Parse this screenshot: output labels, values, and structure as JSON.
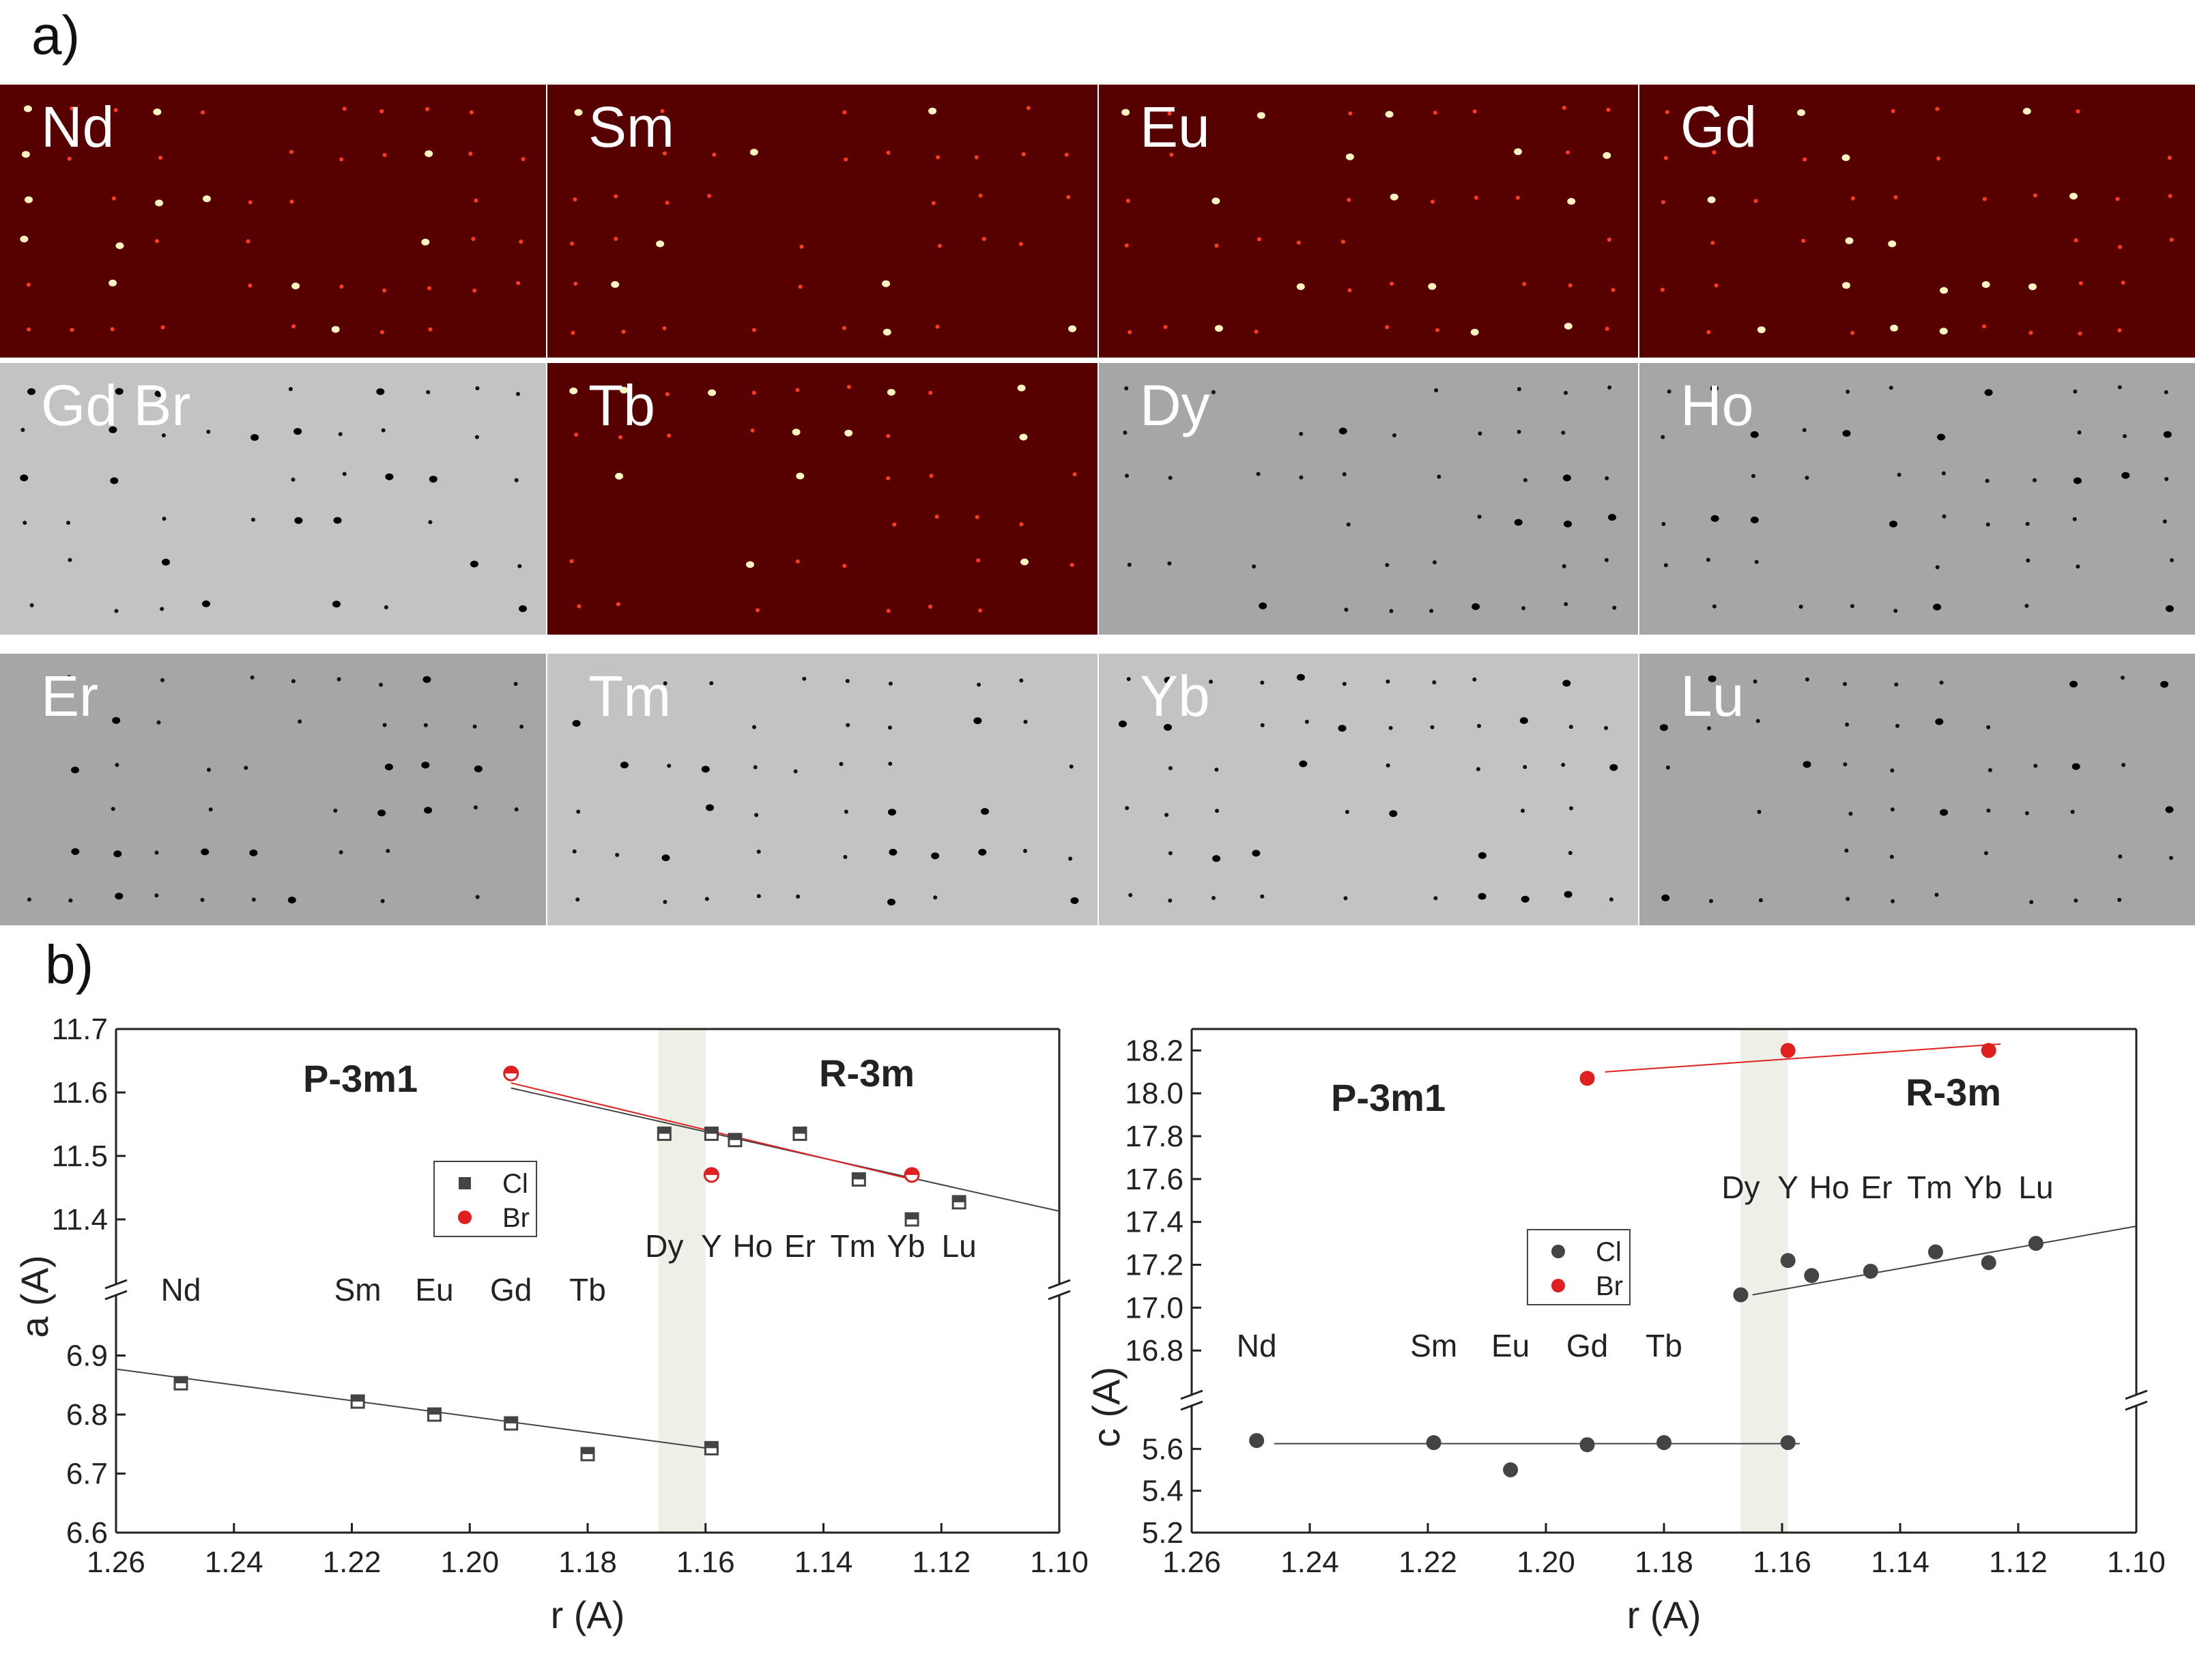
{
  "figure": {
    "panel_a_label": "a)",
    "panel_b_label": "b)"
  },
  "tiles": [
    {
      "label": "Nd",
      "theme": "red"
    },
    {
      "label": "Sm",
      "theme": "red"
    },
    {
      "label": "Eu",
      "theme": "red"
    },
    {
      "label": "Gd",
      "theme": "red"
    },
    {
      "label": "Gd Br",
      "theme": "gray-light"
    },
    {
      "label": "Tb",
      "theme": "red"
    },
    {
      "label": "Dy",
      "theme": "gray"
    },
    {
      "label": "Ho",
      "theme": "gray"
    },
    {
      "label": "Er",
      "theme": "gray"
    },
    {
      "label": "Tm",
      "theme": "gray-light"
    },
    {
      "label": "Yb",
      "theme": "gray-light"
    },
    {
      "label": "Lu",
      "theme": "gray"
    }
  ],
  "colors": {
    "red_bg": "#560000",
    "gray_bg": "#a6a6a6",
    "gray_light_bg": "#c3c3c3",
    "cl_series": "#444444",
    "br_series": "#e02020",
    "band": "#eef0e8"
  },
  "chart_data": [
    {
      "type": "scatter",
      "name": "a-parameter",
      "xlabel": "r (A)",
      "ylabel": "a (A)",
      "xlim": [
        1.26,
        1.1
      ],
      "x_ticks": [
        "1.26",
        "1.24",
        "1.22",
        "1.20",
        "1.18",
        "1.16",
        "1.14",
        "1.12",
        "1.10"
      ],
      "x_tick_values": [
        1.26,
        1.24,
        1.22,
        1.2,
        1.18,
        1.16,
        1.14,
        1.12,
        1.1
      ],
      "ylim_upper": [
        11.3,
        11.7
      ],
      "y_ticks_upper": [
        "11.7",
        "11.6",
        "11.5",
        "11.4"
      ],
      "y_tick_values_upper": [
        11.7,
        11.6,
        11.5,
        11.4
      ],
      "ylim_lower": [
        6.6,
        7.0
      ],
      "y_ticks_lower": [
        "6.9",
        "6.8",
        "6.7",
        "6.6"
      ],
      "y_tick_values_lower": [
        6.9,
        6.8,
        6.7,
        6.6
      ],
      "phase_left": "P-3m1",
      "phase_right": "R-3m",
      "band": [
        1.168,
        1.16
      ],
      "legend": [
        "Cl",
        "Br"
      ],
      "element_labels_upper": [
        "Dy",
        "Y",
        "Ho",
        "Er",
        "Tm",
        "Yb",
        "Lu"
      ],
      "element_labels_upper_x": [
        1.167,
        1.159,
        1.152,
        1.144,
        1.135,
        1.126,
        1.117
      ],
      "element_labels_lower": [
        "Nd",
        "Sm",
        "Eu",
        "Gd",
        "Tb"
      ],
      "element_labels_lower_x": [
        1.249,
        1.219,
        1.206,
        1.193,
        1.18
      ],
      "series": [
        {
          "name": "Cl",
          "panel": "upper",
          "x": [
            1.167,
            1.159,
            1.155,
            1.144,
            1.134,
            1.125,
            1.117
          ],
          "y": [
            11.535,
            11.535,
            11.525,
            11.535,
            11.463,
            11.4,
            11.427
          ]
        },
        {
          "name": "Br",
          "panel": "upper",
          "x": [
            1.193,
            1.159,
            1.125
          ],
          "y": [
            11.63,
            11.47,
            11.47
          ]
        },
        {
          "name": "Cl",
          "panel": "lower",
          "x": [
            1.249,
            1.219,
            1.206,
            1.193,
            1.18,
            1.159
          ],
          "y": [
            6.853,
            6.822,
            6.8,
            6.785,
            6.733,
            6.743
          ]
        }
      ],
      "fits": [
        {
          "series": "Cl",
          "panel": "upper",
          "x": [
            1.193,
            1.1
          ],
          "y": [
            11.607,
            11.413
          ]
        },
        {
          "series": "Br",
          "panel": "upper",
          "x": [
            1.193,
            1.125
          ],
          "y": [
            11.615,
            11.463
          ]
        },
        {
          "series": "Cl",
          "panel": "lower",
          "x": [
            1.26,
            1.159
          ],
          "y": [
            6.877,
            6.742
          ]
        }
      ]
    },
    {
      "type": "scatter",
      "name": "c-parameter",
      "xlabel": "r (A)",
      "ylabel": "c (A)",
      "xlim": [
        1.26,
        1.1
      ],
      "x_ticks": [
        "1.26",
        "1.24",
        "1.22",
        "1.20",
        "1.18",
        "1.16",
        "1.14",
        "1.12",
        "1.10"
      ],
      "x_tick_values": [
        1.26,
        1.24,
        1.22,
        1.2,
        1.18,
        1.16,
        1.14,
        1.12,
        1.1
      ],
      "ylim_upper": [
        16.6,
        18.3
      ],
      "y_ticks_upper": [
        "18.2",
        "18.0",
        "17.8",
        "17.6",
        "17.4",
        "17.2",
        "17.0",
        "16.8"
      ],
      "y_tick_values_upper": [
        18.2,
        18.0,
        17.8,
        17.6,
        17.4,
        17.2,
        17.0,
        16.8
      ],
      "ylim_lower": [
        5.2,
        5.8
      ],
      "y_ticks_lower": [
        "5.6",
        "5.4",
        "5.2"
      ],
      "y_tick_values_lower": [
        5.6,
        5.4,
        5.2
      ],
      "phase_left": "P-3m1",
      "phase_right": "R-3m",
      "band": [
        1.167,
        1.159
      ],
      "legend": [
        "Cl",
        "Br"
      ],
      "element_labels_upper": [
        "Dy",
        "Y",
        "Ho",
        "Er",
        "Tm",
        "Yb",
        "Lu"
      ],
      "element_labels_upper_x": [
        1.167,
        1.159,
        1.152,
        1.144,
        1.135,
        1.126,
        1.117
      ],
      "element_labels_lower": [
        "Nd",
        "Sm",
        "Eu",
        "Gd",
        "Tb"
      ],
      "element_labels_lower_x": [
        1.249,
        1.219,
        1.206,
        1.193,
        1.18
      ],
      "series": [
        {
          "name": "Cl",
          "panel": "upper",
          "x": [
            1.167,
            1.159,
            1.155,
            1.145,
            1.134,
            1.125,
            1.117
          ],
          "y": [
            17.06,
            17.22,
            17.15,
            17.17,
            17.26,
            17.21,
            17.3
          ]
        },
        {
          "name": "Br",
          "panel": "upper",
          "x": [
            1.193,
            1.159,
            1.125
          ],
          "y": [
            18.07,
            18.2,
            18.2
          ]
        },
        {
          "name": "Cl",
          "panel": "lower",
          "x": [
            1.249,
            1.219,
            1.206,
            1.193,
            1.18,
            1.159
          ],
          "y": [
            5.64,
            5.63,
            5.5,
            5.62,
            5.63,
            5.63
          ]
        }
      ],
      "fits": [
        {
          "series": "Cl",
          "panel": "upper",
          "x": [
            1.165,
            1.1
          ],
          "y": [
            17.06,
            17.38
          ]
        },
        {
          "series": "Br",
          "panel": "upper",
          "x": [
            1.19,
            1.123
          ],
          "y": [
            18.1,
            18.23
          ]
        },
        {
          "series": "Cl",
          "panel": "lower",
          "x": [
            1.246,
            1.157
          ],
          "y": [
            5.625,
            5.625
          ]
        }
      ]
    }
  ]
}
